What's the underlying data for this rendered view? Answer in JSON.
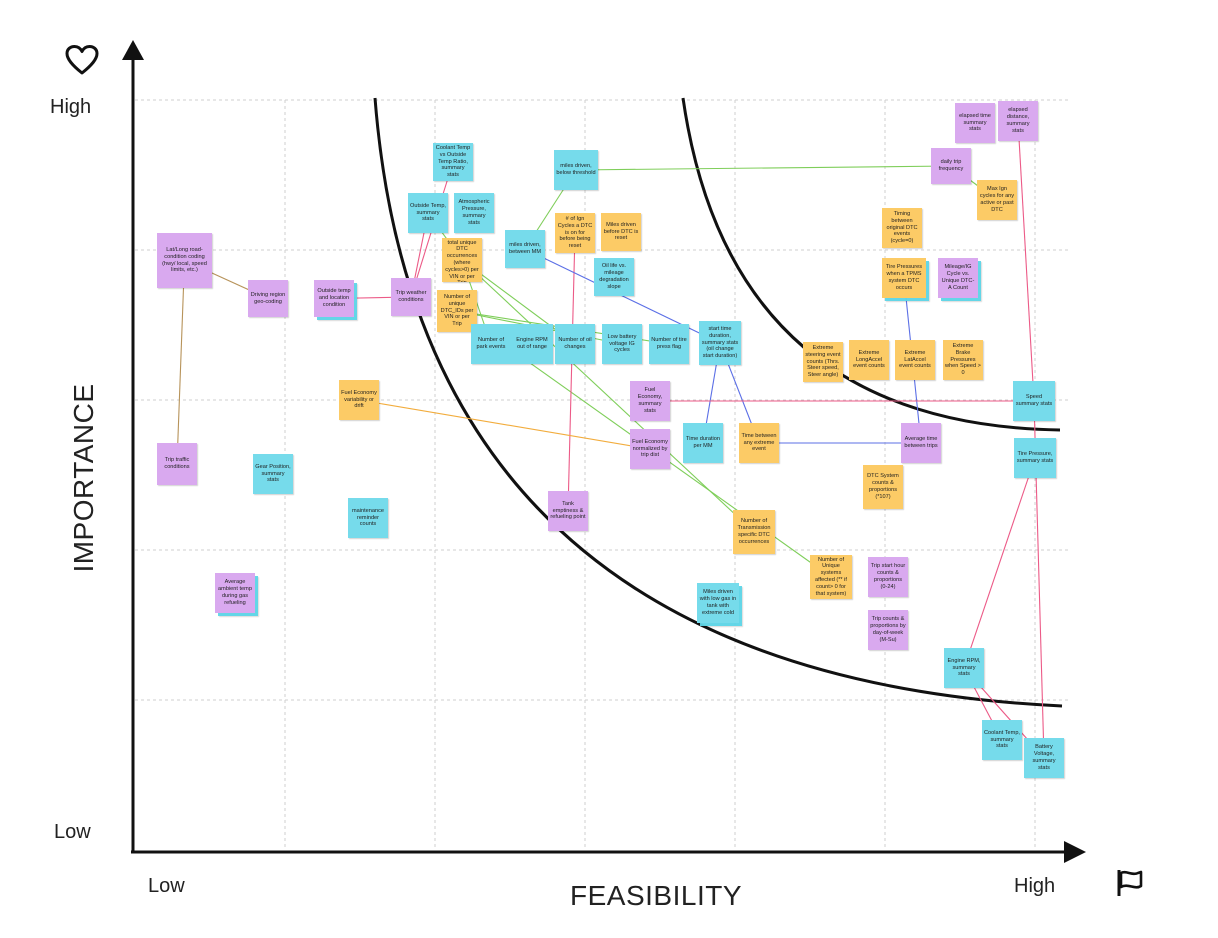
{
  "colors": {
    "purple": "#d9a9ef",
    "cyan": "#76dbeb",
    "orange": "#fccb66",
    "axis": "#111111",
    "grid": "#cfcfcf",
    "curve": "#111111",
    "link_green": "#7fce5a",
    "link_pink": "#ec5a87",
    "link_blue": "#5b6fe6",
    "link_orange": "#f2ac3c",
    "link_brown": "#b7935a"
  },
  "icons": {
    "heart": "heart-icon",
    "flag": "flag-icon"
  },
  "axes": {
    "y_title": "IMPORTANCE",
    "x_title": "FEASIBILITY",
    "y_high": "High",
    "y_low": "Low",
    "x_low": "Low",
    "x_high": "High"
  },
  "notes": [
    {
      "id": "n1",
      "text": "Lat/Long road-condition coding (hwy/ local, speed limits, etc.)",
      "color": "purple"
    },
    {
      "id": "n2",
      "text": "Driving region geo-coding",
      "color": "purple"
    },
    {
      "id": "n3",
      "text": "Outside temp and location condition",
      "color": "purple"
    },
    {
      "id": "n4",
      "text": "Trip weather conditions",
      "color": "purple"
    },
    {
      "id": "n5",
      "text": "Coolant Temp vs Outside Temp Ratio, summary stats",
      "color": "cyan"
    },
    {
      "id": "n6",
      "text": "Outside Temp, summary stats",
      "color": "cyan"
    },
    {
      "id": "n7",
      "text": "Atmospheric Pressure, summary stats",
      "color": "cyan"
    },
    {
      "id": "n8",
      "text": "Number of total unique DTC occurrences (where cycles>0) per VIN or per Trip",
      "color": "orange"
    },
    {
      "id": "n9",
      "text": "Number of unique DTC_IDs per VIN or per Trip",
      "color": "orange"
    },
    {
      "id": "n10",
      "text": "miles driven, below threshold",
      "color": "cyan"
    },
    {
      "id": "n11",
      "text": "# of Ign Cycles a DTC is on for before being reset",
      "color": "orange"
    },
    {
      "id": "n12",
      "text": "Miles driven before DTC is reset",
      "color": "orange"
    },
    {
      "id": "n13",
      "text": "miles driven, between MM",
      "color": "cyan"
    },
    {
      "id": "n14",
      "text": "Oil life vs. mileage degradation slope",
      "color": "cyan"
    },
    {
      "id": "n15",
      "text": "Number of park events",
      "color": "cyan"
    },
    {
      "id": "n16",
      "text": "Engine RPM out of range",
      "color": "cyan"
    },
    {
      "id": "n17",
      "text": "Number of oil changes",
      "color": "cyan"
    },
    {
      "id": "n18",
      "text": "Low battery voltage IG cycles",
      "color": "cyan"
    },
    {
      "id": "n19",
      "text": "Number of tire press flag",
      "color": "cyan"
    },
    {
      "id": "n20",
      "text": "start time duration, summary stats (oil change start duration)",
      "color": "cyan"
    },
    {
      "id": "n21",
      "text": "daily trip frequency",
      "color": "purple"
    },
    {
      "id": "n22",
      "text": "elapsed time summary stats",
      "color": "purple"
    },
    {
      "id": "n23",
      "text": "elapsed distance, summary stats",
      "color": "purple"
    },
    {
      "id": "n24",
      "text": "Max Ign cycles for any active or past DTC",
      "color": "orange"
    },
    {
      "id": "n25",
      "text": "Timing between original DTC events (cycle=0)",
      "color": "orange"
    },
    {
      "id": "n26",
      "text": "Tire Pressures when a TPMS system DTC occurs",
      "color": "orange"
    },
    {
      "id": "n27",
      "text": "Mileage/IG Cycle vs. Unique DTC-A Count",
      "color": "purple"
    },
    {
      "id": "n28",
      "text": "Extreme steering event counts (Thrs. Steer speed, Steer angle)",
      "color": "orange"
    },
    {
      "id": "n29",
      "text": "Extreme LongAccel event counts",
      "color": "orange"
    },
    {
      "id": "n30",
      "text": "Extreme LatAccel event counts",
      "color": "orange"
    },
    {
      "id": "n31",
      "text": "Extreme Brake Pressures when Speed > 0",
      "color": "orange"
    },
    {
      "id": "n32",
      "text": "Fuel Economy variability or drift",
      "color": "orange"
    },
    {
      "id": "n33",
      "text": "Fuel Economy, summary stats",
      "color": "purple"
    },
    {
      "id": "n34",
      "text": "Fuel Economy normalized by trip dist",
      "color": "purple"
    },
    {
      "id": "n35",
      "text": "Time duration per MM",
      "color": "cyan"
    },
    {
      "id": "n36",
      "text": "Time between any extreme event",
      "color": "orange"
    },
    {
      "id": "n37",
      "text": "Average time between trips",
      "color": "purple"
    },
    {
      "id": "n38",
      "text": "Speed summary stats",
      "color": "cyan"
    },
    {
      "id": "n39",
      "text": "Tire Pressure, summary stats",
      "color": "cyan"
    },
    {
      "id": "n40",
      "text": "Trip traffic conditions",
      "color": "purple"
    },
    {
      "id": "n41",
      "text": "Gear Position, summary stats",
      "color": "cyan"
    },
    {
      "id": "n42",
      "text": "maintenance reminder counts",
      "color": "cyan"
    },
    {
      "id": "n43",
      "text": "Tank emptiness & refueling point",
      "color": "purple"
    },
    {
      "id": "n44",
      "text": "DTC System counts & proportions (*107)",
      "color": "orange"
    },
    {
      "id": "n45",
      "text": "Number of Transmission specific DTC occurrences",
      "color": "orange"
    },
    {
      "id": "n46",
      "text": "Number of Unique systems affected (** if count> 0 for that system)",
      "color": "orange"
    },
    {
      "id": "n47",
      "text": "Trip start hour counts & proportions (0-24)",
      "color": "purple"
    },
    {
      "id": "n48",
      "text": "Trip counts & proportions by day-of-week (M-Su)",
      "color": "purple"
    },
    {
      "id": "n49",
      "text": "Average ambient temp during gas refueling",
      "color": "purple"
    },
    {
      "id": "n50",
      "text": "Miles driven with low gas in tank with extreme cold",
      "color": "cyan"
    },
    {
      "id": "n51",
      "text": "Engine RPM, summary stats",
      "color": "cyan"
    },
    {
      "id": "n52",
      "text": "Coolant Temp, summary stats",
      "color": "cyan"
    },
    {
      "id": "n53",
      "text": "Battery Voltage, summary stats",
      "color": "cyan"
    }
  ],
  "links": [
    {
      "from": "n1",
      "to": "n2",
      "color": "link_brown"
    },
    {
      "from": "n1",
      "to": "n40",
      "color": "link_brown"
    },
    {
      "from": "n3",
      "to": "n4",
      "color": "link_pink"
    },
    {
      "from": "n4",
      "to": "n6",
      "color": "link_pink"
    },
    {
      "from": "n4",
      "to": "n5",
      "color": "link_pink"
    },
    {
      "from": "n6",
      "to": "n8",
      "color": "link_green"
    },
    {
      "from": "n8",
      "to": "n15",
      "color": "link_green"
    },
    {
      "from": "n8",
      "to": "n17",
      "color": "link_green"
    },
    {
      "from": "n9",
      "to": "n18",
      "color": "link_green"
    },
    {
      "from": "n9",
      "to": "n19",
      "color": "link_green"
    },
    {
      "from": "n8",
      "to": "n45",
      "color": "link_green"
    },
    {
      "from": "n9",
      "to": "n46",
      "color": "link_green"
    },
    {
      "from": "n10",
      "to": "n21",
      "color": "link_green"
    },
    {
      "from": "n10",
      "to": "n13",
      "color": "link_green"
    },
    {
      "from": "n11",
      "to": "n43",
      "color": "link_pink"
    },
    {
      "from": "n13",
      "to": "n20",
      "color": "link_blue"
    },
    {
      "from": "n20",
      "to": "n35",
      "color": "link_blue"
    },
    {
      "from": "n20",
      "to": "n36",
      "color": "link_blue"
    },
    {
      "from": "n36",
      "to": "n37",
      "color": "link_blue"
    },
    {
      "from": "n26",
      "to": "n37",
      "color": "link_blue"
    },
    {
      "from": "n21",
      "to": "n24",
      "color": "link_green"
    },
    {
      "from": "n32",
      "to": "n34",
      "color": "link_orange"
    },
    {
      "from": "n33",
      "to": "n38",
      "color": "link_pink"
    },
    {
      "from": "n23",
      "to": "n38",
      "color": "link_pink"
    },
    {
      "from": "n39",
      "to": "n51",
      "color": "link_pink"
    },
    {
      "from": "n51",
      "to": "n52",
      "color": "link_pink"
    },
    {
      "from": "n51",
      "to": "n53",
      "color": "link_pink"
    },
    {
      "from": "n38",
      "to": "n53",
      "color": "link_pink"
    }
  ]
}
